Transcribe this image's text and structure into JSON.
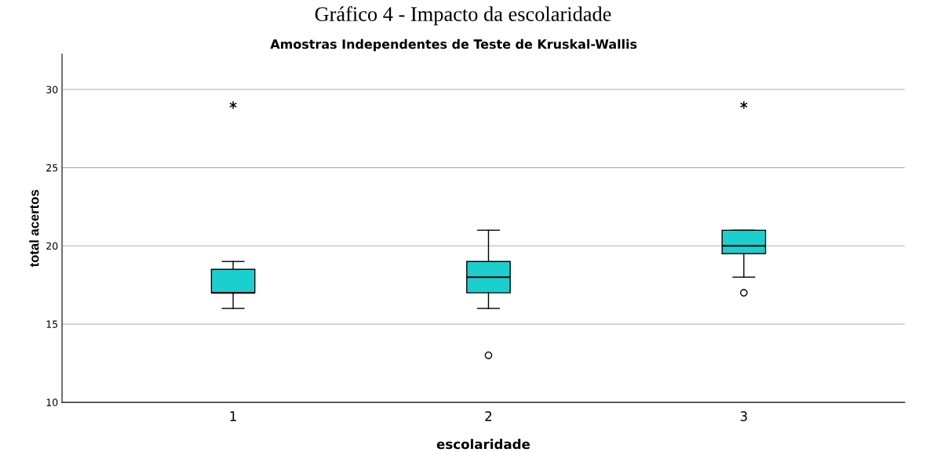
{
  "chart_data": {
    "type": "box",
    "title": "Gráfico 4 - Impacto da escolaridade",
    "subtitle": "Amostras Independentes de Teste de Kruskal-Wallis",
    "xlabel": "escolaridade",
    "ylabel": "total acertos",
    "categories": [
      "1",
      "2",
      "3"
    ],
    "color": "#1ccfcf",
    "boxes": [
      {
        "low": 16,
        "q1": 17,
        "median": 17,
        "q3": 18.5,
        "high": 19,
        "outliers": [
          29
        ]
      },
      {
        "low": 16,
        "q1": 17,
        "median": 18,
        "q3": 19,
        "high": 21,
        "outliers": [
          13
        ]
      },
      {
        "low": 18,
        "q1": 19.5,
        "median": 20,
        "q3": 21,
        "high": 21,
        "outliers": [
          17,
          29
        ]
      }
    ],
    "ylim": [
      10,
      32.25
    ],
    "yticks": [
      10,
      15,
      20,
      25,
      30
    ],
    "grid": "y"
  }
}
